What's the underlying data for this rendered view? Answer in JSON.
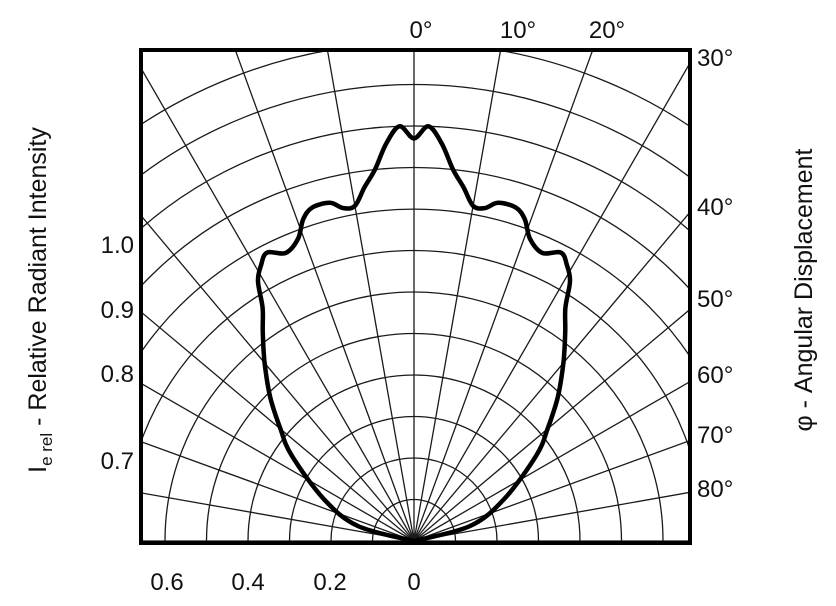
{
  "chart_data": {
    "type": "polar-line",
    "ylabel_main": "I",
    "ylabel_sub": "e rel",
    "ylabel_rest": " - Relative Radiant Intensity",
    "right_label": "φ - Angular Displacement",
    "top_angle_labels": [
      "0°",
      "10°",
      "20°"
    ],
    "right_angle_labels": [
      "30°",
      "40°",
      "50°",
      "60°",
      "70°",
      "80°"
    ],
    "left_intensity_labels": [
      "1.0",
      "0.9",
      "0.8",
      "0.7"
    ],
    "bottom_labels": [
      "0.6",
      "0.4",
      "0.2",
      "0"
    ],
    "angle_ticks_deg": [
      0,
      10,
      20,
      30,
      40,
      50,
      60,
      70,
      80,
      90
    ],
    "radial_range": [
      0,
      1.0
    ],
    "series": [
      {
        "points": [
          {
            "angle": -90,
            "r": 0.0
          },
          {
            "angle": -75,
            "r": 0.14
          },
          {
            "angle": -65,
            "r": 0.24
          },
          {
            "angle": -55,
            "r": 0.36
          },
          {
            "angle": -50,
            "r": 0.42
          },
          {
            "angle": -45,
            "r": 0.49
          },
          {
            "angle": -40,
            "r": 0.56
          },
          {
            "angle": -36,
            "r": 0.62
          },
          {
            "angle": -33,
            "r": 0.67
          },
          {
            "angle": -31,
            "r": 0.73
          },
          {
            "angle": -29,
            "r": 0.76
          },
          {
            "angle": -27,
            "r": 0.78
          },
          {
            "angle": -24,
            "r": 0.76
          },
          {
            "angle": -21,
            "r": 0.78
          },
          {
            "angle": -19,
            "r": 0.82
          },
          {
            "angle": -17,
            "r": 0.84
          },
          {
            "angle": -14,
            "r": 0.84
          },
          {
            "angle": -12,
            "r": 0.82
          },
          {
            "angle": -10,
            "r": 0.82
          },
          {
            "angle": -8,
            "r": 0.86
          },
          {
            "angle": -6,
            "r": 0.9
          },
          {
            "angle": -4,
            "r": 0.96
          },
          {
            "angle": -2,
            "r": 1.0
          },
          {
            "angle": 0,
            "r": 0.97
          },
          {
            "angle": 2,
            "r": 1.0
          },
          {
            "angle": 4,
            "r": 0.96
          },
          {
            "angle": 6,
            "r": 0.9
          },
          {
            "angle": 8,
            "r": 0.86
          },
          {
            "angle": 10,
            "r": 0.82
          },
          {
            "angle": 12,
            "r": 0.82
          },
          {
            "angle": 14,
            "r": 0.84
          },
          {
            "angle": 17,
            "r": 0.84
          },
          {
            "angle": 19,
            "r": 0.82
          },
          {
            "angle": 21,
            "r": 0.78
          },
          {
            "angle": 24,
            "r": 0.76
          },
          {
            "angle": 27,
            "r": 0.78
          },
          {
            "angle": 29,
            "r": 0.76
          },
          {
            "angle": 31,
            "r": 0.73
          },
          {
            "angle": 33,
            "r": 0.67
          },
          {
            "angle": 36,
            "r": 0.62
          },
          {
            "angle": 40,
            "r": 0.56
          },
          {
            "angle": 45,
            "r": 0.49
          },
          {
            "angle": 50,
            "r": 0.42
          },
          {
            "angle": 55,
            "r": 0.36
          },
          {
            "angle": 65,
            "r": 0.24
          },
          {
            "angle": 75,
            "r": 0.14
          },
          {
            "angle": 90,
            "r": 0.0
          }
        ]
      }
    ],
    "grid": true
  }
}
